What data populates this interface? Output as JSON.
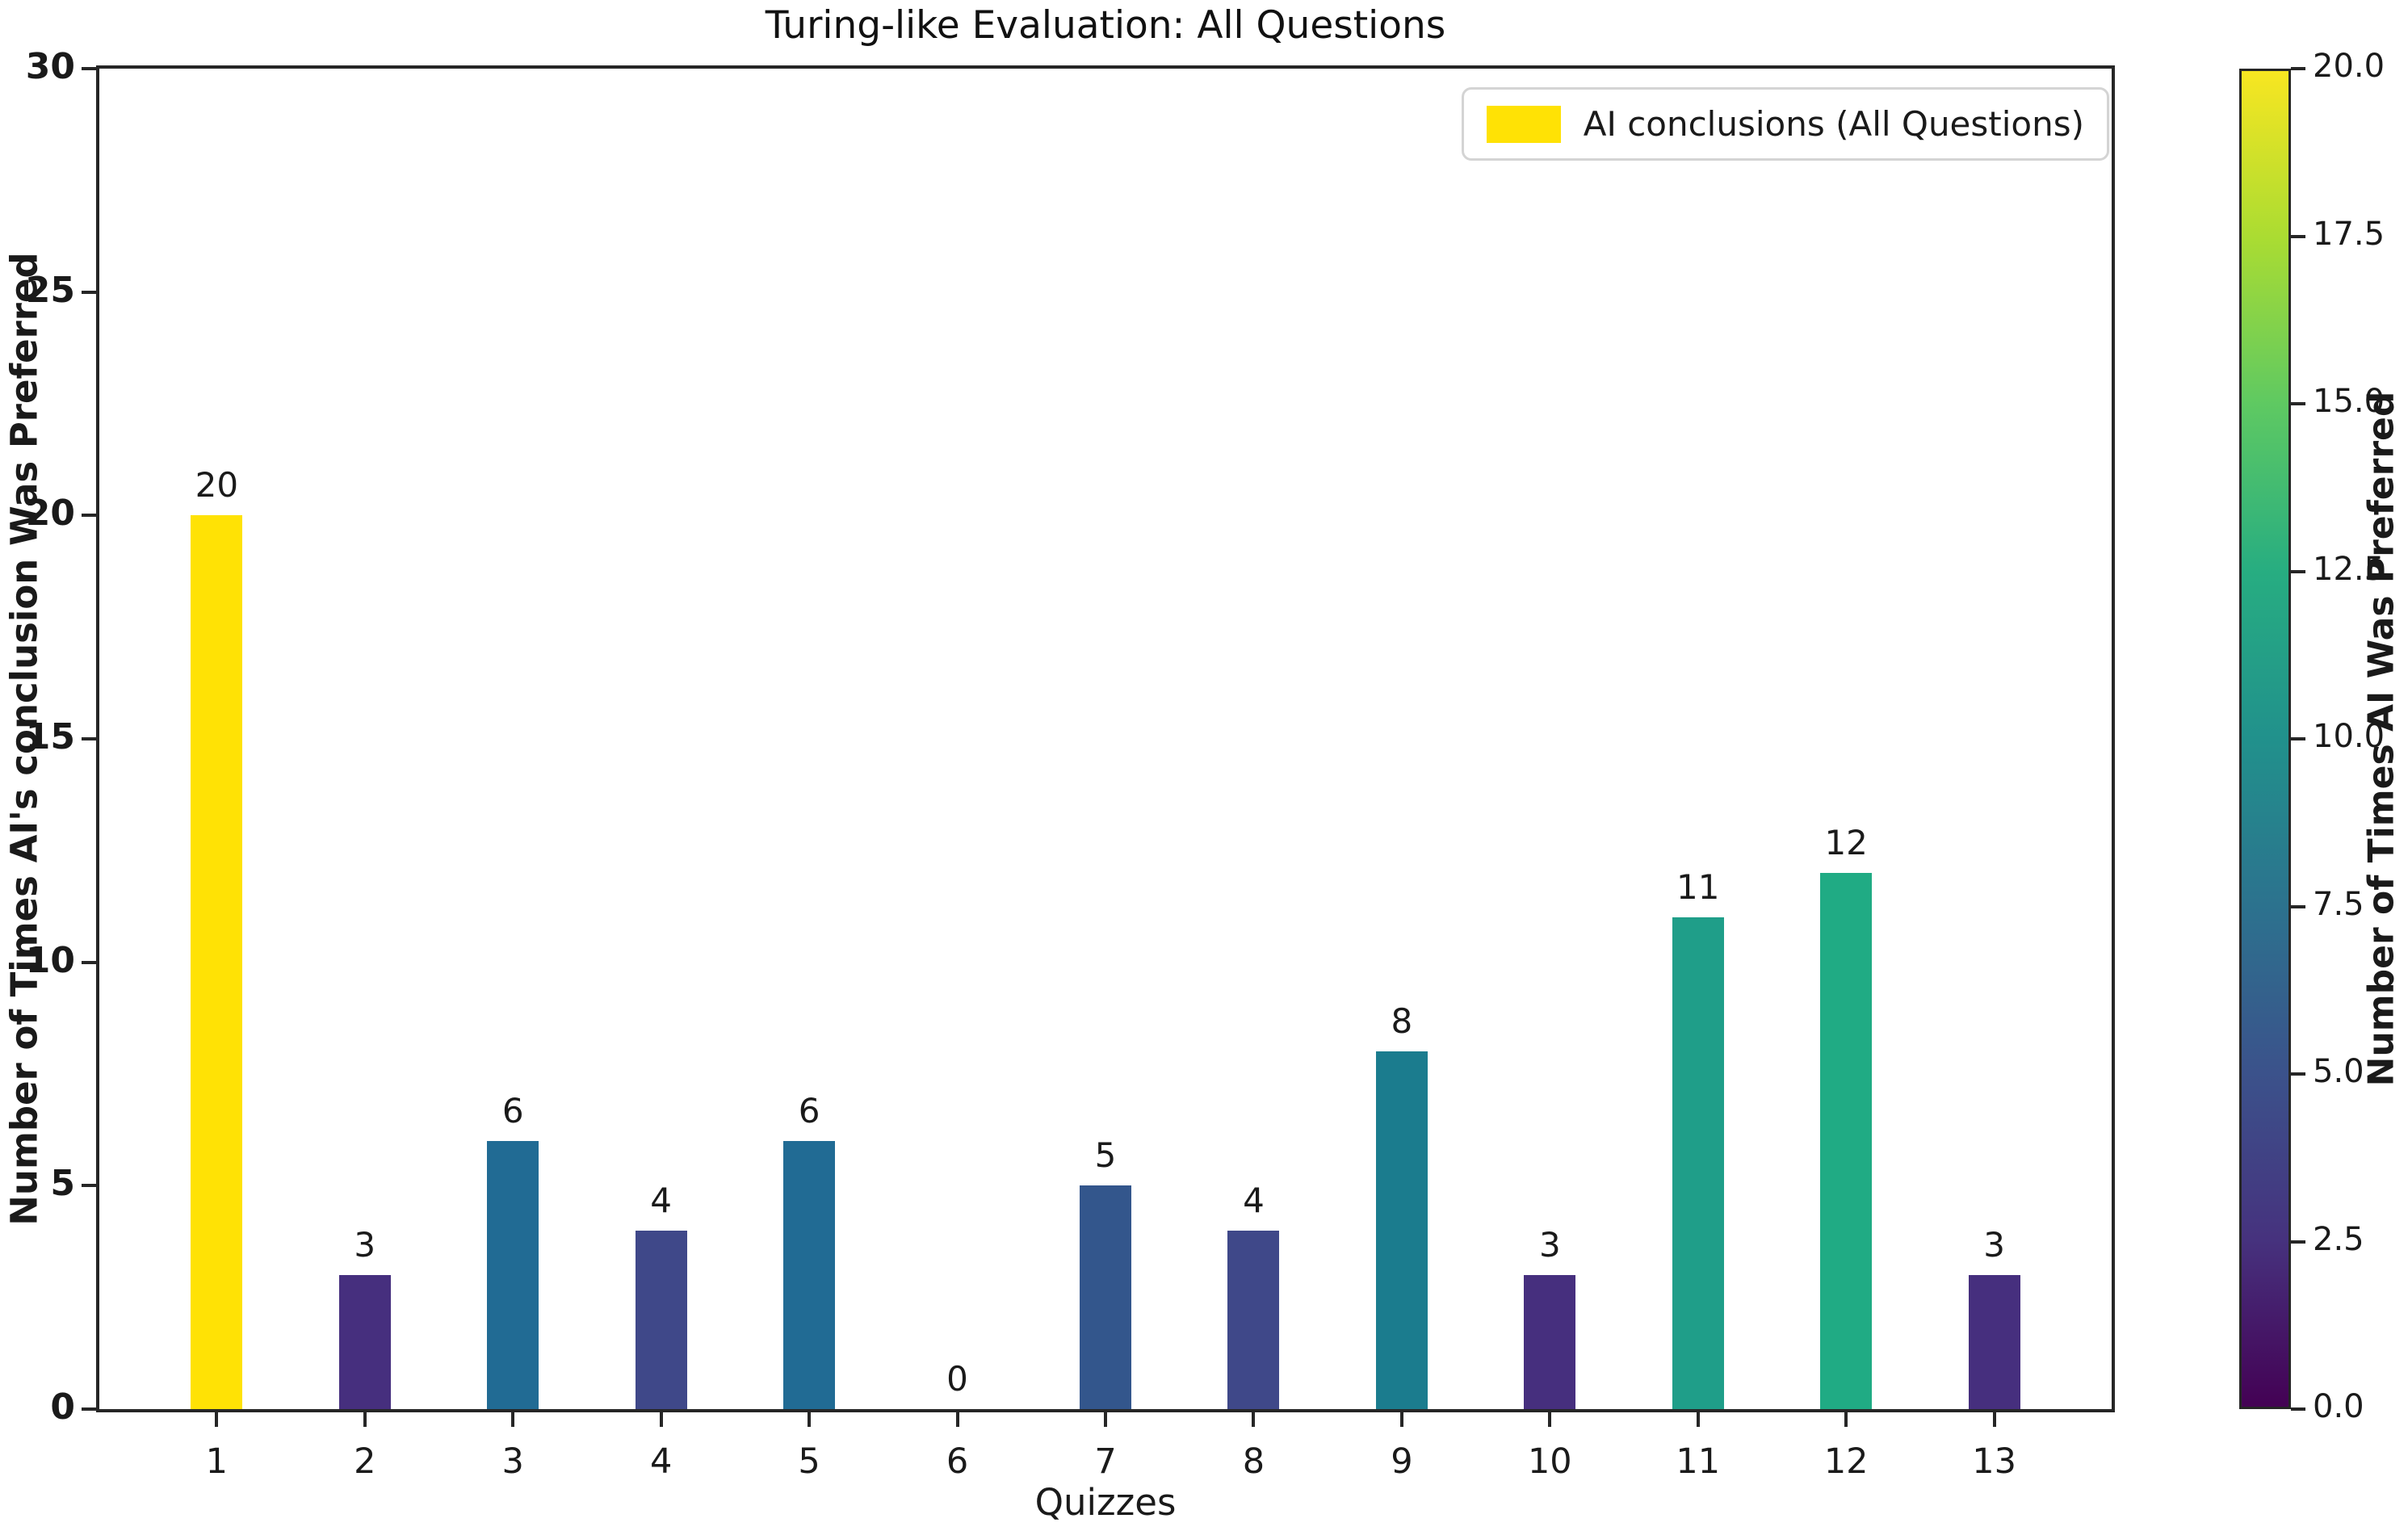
{
  "chart_data": {
    "type": "bar",
    "title": "Turing-like Evaluation: All Questions",
    "xlabel": "Quizzes",
    "ylabel": "Number of Times AI's conclusion Was Preferred",
    "categories": [
      "1",
      "2",
      "3",
      "4",
      "5",
      "6",
      "7",
      "8",
      "9",
      "10",
      "11",
      "12",
      "13"
    ],
    "values": [
      20,
      3,
      6,
      4,
      6,
      0,
      5,
      4,
      8,
      3,
      11,
      12,
      3
    ],
    "bar_labels": [
      "20",
      "3",
      "6",
      "4",
      "6",
      "0",
      "5",
      "4",
      "8",
      "3",
      "11",
      "12",
      "3"
    ],
    "bar_colors": [
      "#ffe205",
      "#462f7e",
      "#216b94",
      "#3f4889",
      "#216b94",
      "#440154",
      "#33568c",
      "#3f4889",
      "#1b7c8e",
      "#462f7e",
      "#1f9e89",
      "#20ab84",
      "#462f7e"
    ],
    "ylim": [
      0,
      30
    ],
    "yticks": [
      {
        "value": 0,
        "label": "0"
      },
      {
        "value": 5,
        "label": "5"
      },
      {
        "value": 10,
        "label": "10"
      },
      {
        "value": 15,
        "label": "15"
      },
      {
        "value": 20,
        "label": "20"
      },
      {
        "value": 25,
        "label": "25"
      },
      {
        "value": 30,
        "label": "30"
      }
    ],
    "grid": false,
    "legend_position": "upper right",
    "legend_label": "AI conclusions (All Questions)",
    "legend_swatch_color": "#ffe205",
    "colormap": "viridis",
    "colorbar": {
      "label": "Number of Times AI Was Preferred",
      "vmin": 0,
      "vmax": 20,
      "ticks": [
        {
          "value": 0,
          "label": "0.0"
        },
        {
          "value": 2.5,
          "label": "2.5"
        },
        {
          "value": 5,
          "label": "5.0"
        },
        {
          "value": 7.5,
          "label": "7.5"
        },
        {
          "value": 10,
          "label": "10.0"
        },
        {
          "value": 12.5,
          "label": "12.5"
        },
        {
          "value": 15,
          "label": "15.0"
        },
        {
          "value": 17.5,
          "label": "17.5"
        },
        {
          "value": 20,
          "label": "20.0"
        }
      ],
      "gradient_stops_bottom_to_top": [
        "#440154",
        "#46327e",
        "#3b528b",
        "#2c728e",
        "#21918c",
        "#27ad81",
        "#5ec962",
        "#aadc32",
        "#f8e621"
      ]
    }
  }
}
